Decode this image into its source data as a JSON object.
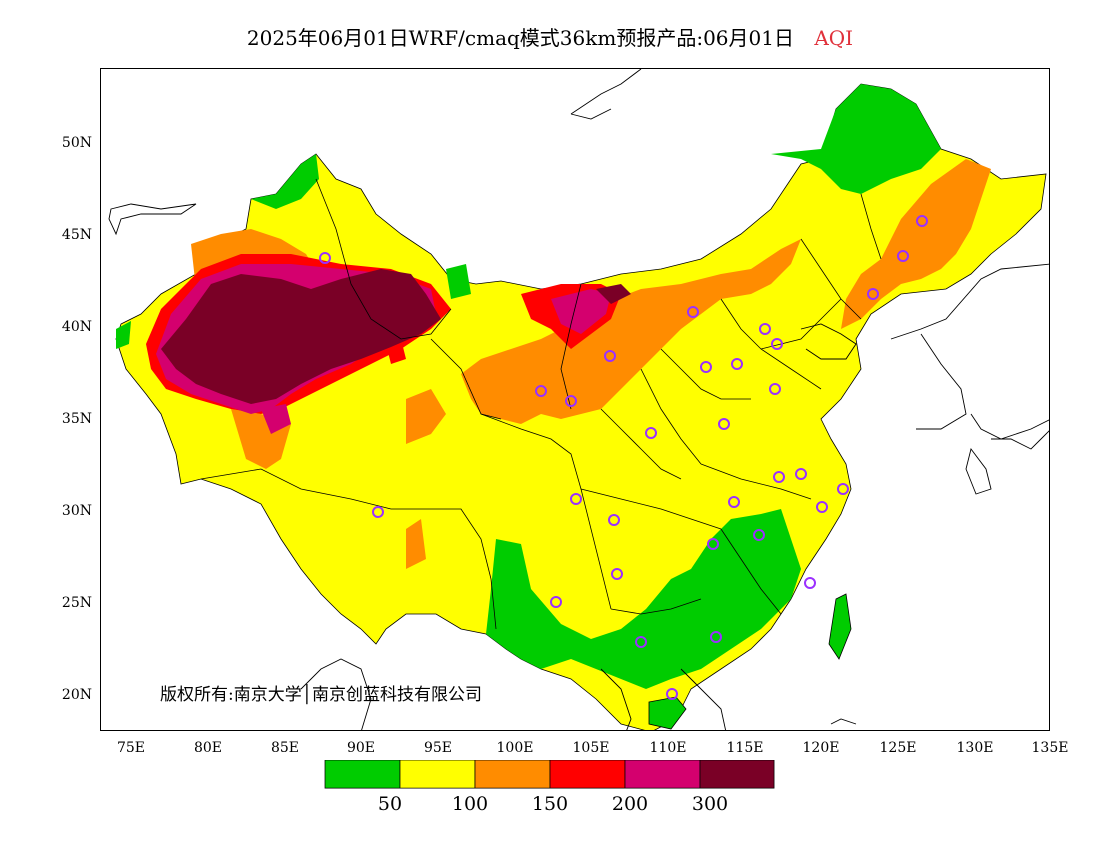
{
  "title": {
    "main": "2025年06月01日WRF/cmaq模式36km预报产品:06月01日",
    "variable": "AQI"
  },
  "copyright": "版权所有:南京大学│南京创蓝科技有限公司",
  "axes": {
    "x_ticks": [
      "75E",
      "80E",
      "85E",
      "90E",
      "95E",
      "100E",
      "105E",
      "110E",
      "115E",
      "120E",
      "125E",
      "130E",
      "135E"
    ],
    "y_ticks": [
      "50N",
      "45N",
      "40N",
      "35N",
      "30N",
      "25N",
      "20N"
    ]
  },
  "legend": {
    "colors": [
      "#00cc00",
      "#ffff00",
      "#ff8c00",
      "#ff0000",
      "#d4006e",
      "#7a0026"
    ],
    "labels": [
      "50",
      "100",
      "150",
      "200",
      "300"
    ]
  },
  "colors": {
    "good": "#00cc00",
    "moderate": "#ffff00",
    "usg": "#ff8c00",
    "unhealthy": "#ff0000",
    "very_unhealthy": "#d4006e",
    "hazardous": "#7a0026",
    "station_marker": "#9b30ff"
  }
}
